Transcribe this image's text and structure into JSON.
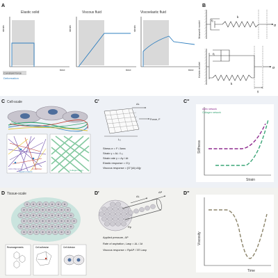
{
  "panel_labels": {
    "A": "A",
    "B": "B",
    "C": "C",
    "C1": "C'",
    "C2": "C''",
    "D": "D",
    "D1": "D'",
    "D2": "D''"
  },
  "panel_a": {
    "titles": [
      "Elastic solid",
      "Viscous fluid",
      "Viscoelastic fluid"
    ],
    "y_label": "strain",
    "x_label": "time",
    "legend_force": "Constant force",
    "legend_deformation": "Deformation",
    "colors": {
      "force": "#d9d9d9",
      "deformation": "#2f7fbf"
    }
  },
  "panel_b": {
    "maxwell_label": "Maxwell model",
    "kelvin_label": "Kelvin model",
    "eta": "η",
    "k": "k",
    "sigma": "σ",
    "gamma": "γ"
  },
  "panel_c": {
    "title": "Cell-scale",
    "inset_actin": "Actin filaments",
    "inset_crosslinker": "crosslinker",
    "inset_motor": "Myosin motors",
    "inset_collagen": "Collagen fibers"
  },
  "panel_c1": {
    "delta_l": "ΔL",
    "force": "Force, F",
    "l0": "L₀",
    "equations": [
      "Stress σ = F / Area",
      "Strain γ = ΔL / L₀",
      "Strain rate γ = Δγ / Δt",
      "Elastic response = G'γ",
      "Viscous response = [G''(Δt) Δt]γ"
    ]
  },
  "panel_c2": {
    "legend": [
      {
        "label": "Actin network",
        "color": "#8e2a8e"
      },
      {
        "label": "Collagen network",
        "color": "#3aa577"
      }
    ],
    "ylabel": "Stiffness",
    "xlabel": "Strain"
  },
  "panel_d": {
    "title": "Tissue-scale",
    "insets": [
      "Rearrangements",
      "Cell adhesion",
      "Cell division"
    ]
  },
  "panel_d1": {
    "delta_l": "ΔL",
    "delta_p": "ΔP",
    "rp": "Rp",
    "equations": [
      "Applied pressure, ΔP",
      "Rate of aspiration, Lasp = ΔL / Δt",
      "Viscous response = RpΔP / 3Π Lasp"
    ]
  },
  "panel_d2": {
    "ylabel": "Viscosity",
    "xlabel": "Time",
    "color": "#8a8268"
  }
}
